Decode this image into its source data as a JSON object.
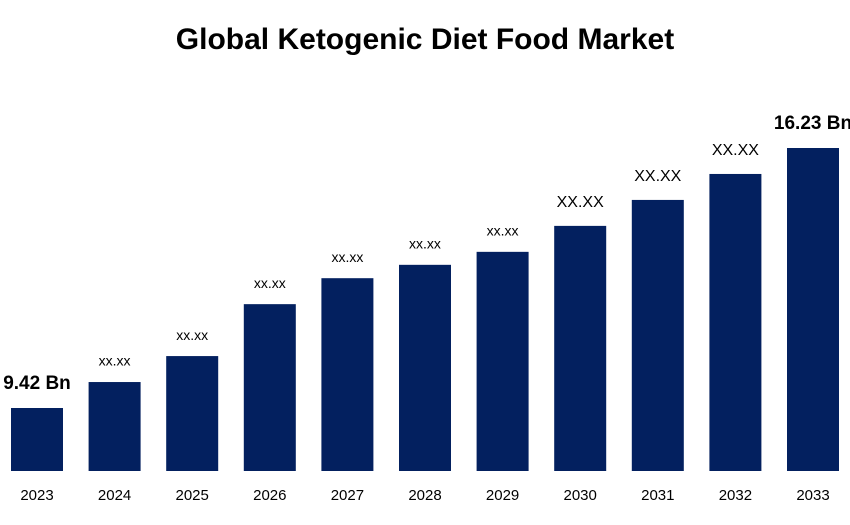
{
  "chart_data": {
    "type": "bar",
    "title": "Global Ketogenic Diet Food Market",
    "categories": [
      "2023",
      "2024",
      "2025",
      "2026",
      "2027",
      "2028",
      "2029",
      "2030",
      "2031",
      "2032",
      "2033"
    ],
    "values": [
      9.42,
      10.1,
      10.78,
      12.14,
      12.82,
      13.17,
      13.51,
      14.19,
      14.87,
      15.55,
      16.23
    ],
    "value_labels": [
      "9.42 Bn",
      "xx.xx",
      "xx.xx",
      "xx.xx",
      "xx.xx",
      "xx.xx",
      "xx.xx",
      "XX.XX",
      "XX.XX",
      "XX.XX",
      "16.23 Bn"
    ],
    "color": "#03205f"
  }
}
